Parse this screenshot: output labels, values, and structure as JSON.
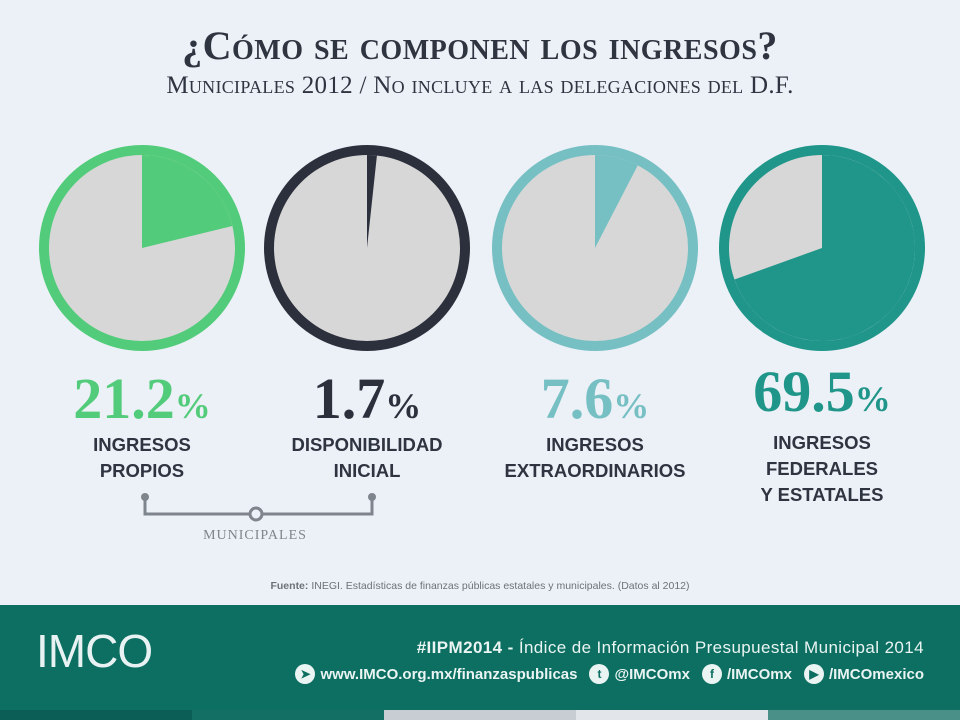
{
  "title": "¿Cómo se componen los ingresos?",
  "subtitle": "Municipales 2012 / No incluye a las delegaciones del D.F.",
  "chart_data": {
    "type": "pie",
    "title": "¿Cómo se componen los ingresos?",
    "subtitle": "Municipales 2012 / No incluye a las delegaciones del D.F.",
    "series": [
      {
        "value": 21.2,
        "value_label": "21.2",
        "unit": "%",
        "label_lines": [
          "INGRESOS",
          "PROPIOS"
        ],
        "color": "#52cc7a"
      },
      {
        "value": 1.7,
        "value_label": "1.7",
        "unit": "%",
        "label_lines": [
          "DISPONIBILIDAD",
          "INICIAL"
        ],
        "color": "#2c303c"
      },
      {
        "value": 7.6,
        "value_label": "7.6",
        "unit": "%",
        "label_lines": [
          "INGRESOS",
          "EXTRAORDINARIOS"
        ],
        "color": "#76c0c4"
      },
      {
        "value": 69.5,
        "value_label": "69.5",
        "unit": "%",
        "label_lines": [
          "INGRESOS",
          "FEDERALES",
          "Y ESTATALES"
        ],
        "color": "#1f9689"
      }
    ],
    "remainder_color": "#d7d7d7",
    "group_bracket": {
      "label": "MUNICIPALES",
      "spans": [
        "INGRESOS PROPIOS",
        "DISPONIBILIDAD INICIAL"
      ]
    }
  },
  "source": {
    "bold": "Fuente:",
    "text": " INEGI.  Estadísticas  de finanzas públicas estatales y municipales. (Datos al 2012)"
  },
  "footer": {
    "logo": "IMCO",
    "hashtag_bold": "#IIPM2014 -",
    "hashtag_text": " Índice de Información Presupuestal Municipal 2014",
    "links": [
      {
        "icon": "send-icon",
        "text": "www.IMCO.org.mx/finanzaspublicas"
      },
      {
        "icon": "twitter-icon",
        "text": "@IMCOmx"
      },
      {
        "icon": "facebook-icon",
        "text": "/IMCOmx"
      },
      {
        "icon": "youtube-icon",
        "text": "/IMCOmexico"
      }
    ],
    "bg_color": "#0c6f61",
    "stripe_colors": [
      "#0b5e55",
      "#136f63",
      "#c8ccd3",
      "#e2e5ea",
      "#4a8f88"
    ]
  }
}
